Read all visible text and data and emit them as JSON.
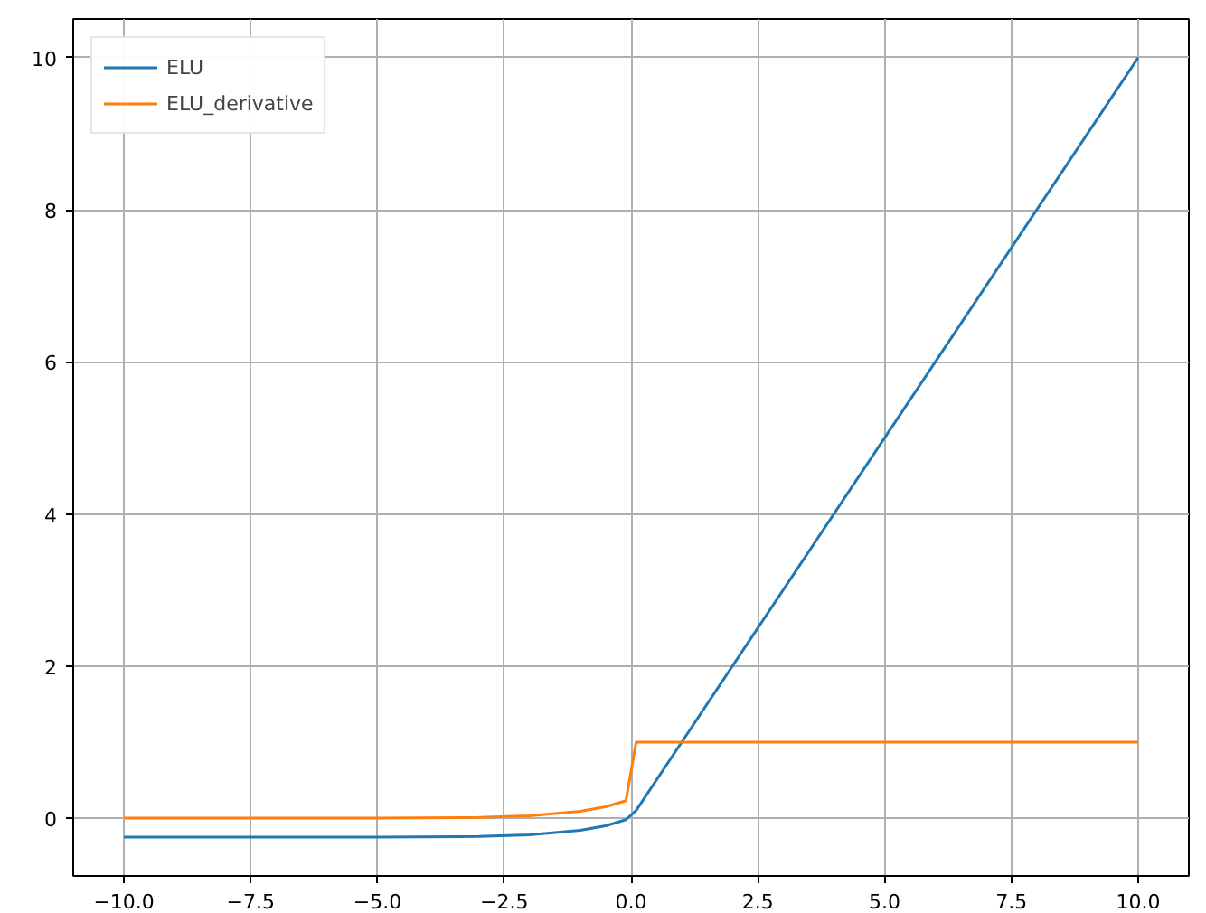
{
  "chart_data": {
    "type": "line",
    "xlim": [
      -11,
      11
    ],
    "ylim": [
      -0.76,
      10.51
    ],
    "xticks": [
      {
        "value": -10,
        "label": "−10.0"
      },
      {
        "value": -7.5,
        "label": "−7.5"
      },
      {
        "value": -5,
        "label": "−5.0"
      },
      {
        "value": -2.5,
        "label": "−2.5"
      },
      {
        "value": 0,
        "label": "0.0"
      },
      {
        "value": 2.5,
        "label": "2.5"
      },
      {
        "value": 5,
        "label": "5.0"
      },
      {
        "value": 7.5,
        "label": "7.5"
      },
      {
        "value": 10,
        "label": "10.0"
      }
    ],
    "yticks": [
      0,
      2,
      4,
      6,
      8,
      10
    ],
    "grid": true,
    "legend": "top left",
    "line_style": "solid",
    "marker": "none",
    "series": [
      {
        "name": "ELU",
        "color": "#1f77b4",
        "x": [
          -10,
          -5,
          -3,
          -2,
          -1.5,
          -1,
          -0.5,
          -0.1,
          0.1,
          10
        ],
        "values": [
          -0.25,
          -0.25,
          -0.24,
          -0.22,
          -0.19,
          -0.16,
          -0.1,
          -0.02,
          0.1,
          10
        ]
      },
      {
        "name": "ELU_derivative",
        "color": "#ff7f0e",
        "x": [
          -10,
          -5,
          -3,
          -2,
          -1.5,
          -1,
          -0.5,
          -0.1,
          0.1,
          10
        ],
        "values": [
          0,
          0,
          0.01,
          0.03,
          0.06,
          0.09,
          0.15,
          0.23,
          1,
          1
        ]
      }
    ]
  }
}
